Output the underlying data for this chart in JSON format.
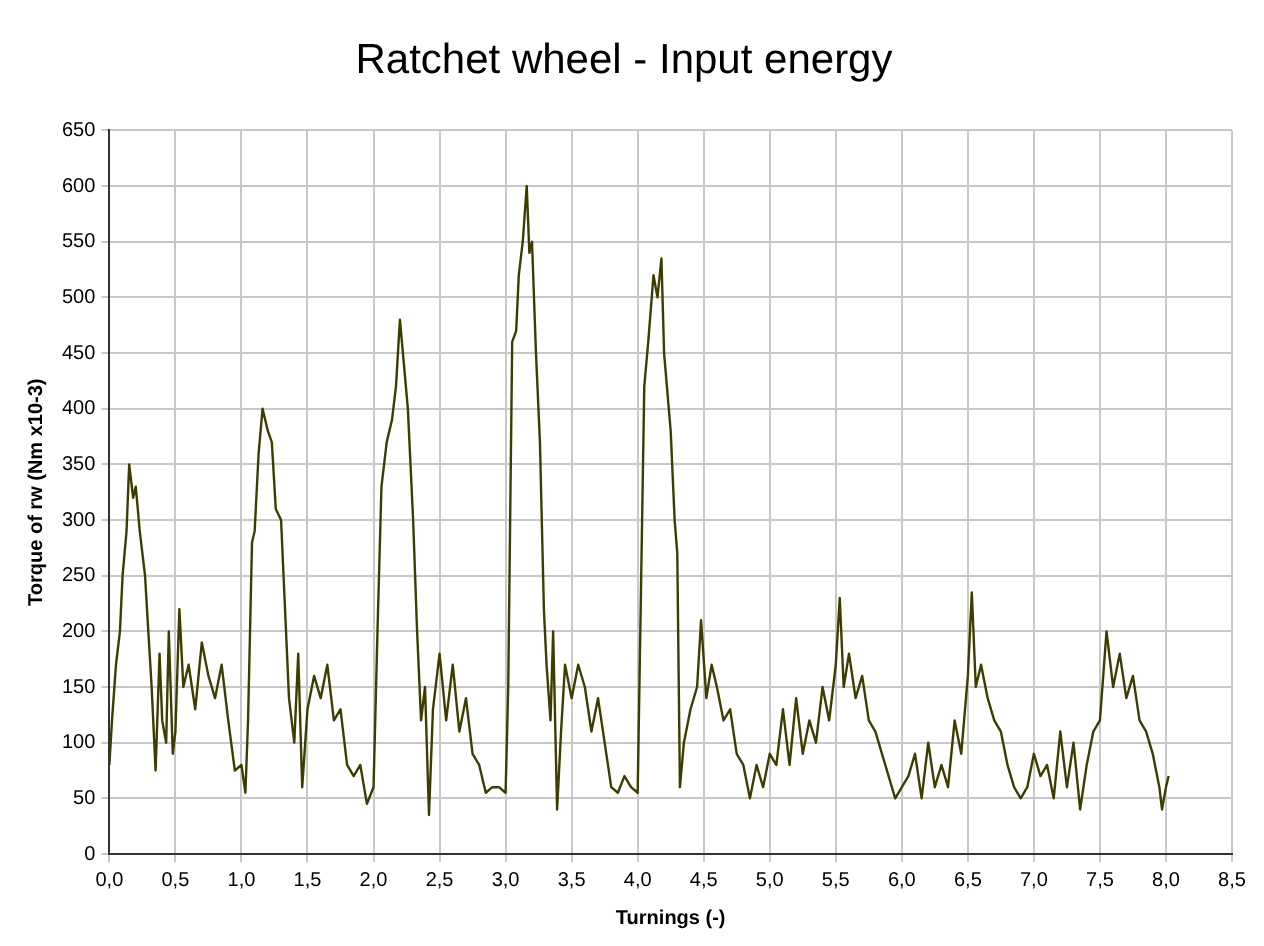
{
  "chart_data": {
    "type": "line",
    "title": "Ratchet wheel - Input energy",
    "xlabel": "Turnings (-)",
    "ylabel": "Torque of rw (Nm x10-3)",
    "series": [
      {
        "color": "#3d3d00",
        "x": [
          0.0,
          0.02,
          0.05,
          0.08,
          0.1,
          0.13,
          0.15,
          0.18,
          0.2,
          0.23,
          0.27,
          0.3,
          0.32,
          0.35,
          0.38,
          0.4,
          0.43,
          0.45,
          0.48,
          0.5,
          0.53,
          0.56,
          0.6,
          0.65,
          0.7,
          0.75,
          0.8,
          0.85,
          0.9,
          0.95,
          1.0,
          1.03,
          1.05,
          1.08,
          1.1,
          1.13,
          1.16,
          1.2,
          1.23,
          1.26,
          1.3,
          1.33,
          1.36,
          1.4,
          1.43,
          1.46,
          1.5,
          1.55,
          1.6,
          1.65,
          1.7,
          1.75,
          1.8,
          1.85,
          1.9,
          1.95,
          2.0,
          2.03,
          2.06,
          2.1,
          2.14,
          2.17,
          2.2,
          2.23,
          2.26,
          2.3,
          2.33,
          2.36,
          2.39,
          2.42,
          2.45,
          2.5,
          2.55,
          2.6,
          2.65,
          2.7,
          2.75,
          2.8,
          2.85,
          2.9,
          2.95,
          3.0,
          3.02,
          3.05,
          3.08,
          3.1,
          3.13,
          3.16,
          3.18,
          3.2,
          3.23,
          3.26,
          3.29,
          3.31,
          3.34,
          3.36,
          3.39,
          3.42,
          3.45,
          3.5,
          3.55,
          3.6,
          3.65,
          3.7,
          3.75,
          3.8,
          3.85,
          3.9,
          3.95,
          4.0,
          4.02,
          4.05,
          4.08,
          4.12,
          4.15,
          4.18,
          4.2,
          4.25,
          4.28,
          4.3,
          4.32,
          4.35,
          4.4,
          4.45,
          4.48,
          4.52,
          4.56,
          4.6,
          4.65,
          4.7,
          4.75,
          4.8,
          4.85,
          4.9,
          4.95,
          5.0,
          5.05,
          5.1,
          5.15,
          5.2,
          5.25,
          5.3,
          5.35,
          5.4,
          5.45,
          5.5,
          5.53,
          5.56,
          5.6,
          5.65,
          5.7,
          5.75,
          5.8,
          5.85,
          5.9,
          5.95,
          6.0,
          6.05,
          6.1,
          6.15,
          6.2,
          6.25,
          6.3,
          6.35,
          6.4,
          6.45,
          6.5,
          6.53,
          6.56,
          6.6,
          6.65,
          6.7,
          6.75,
          6.8,
          6.85,
          6.9,
          6.95,
          7.0,
          7.05,
          7.1,
          7.15,
          7.2,
          7.25,
          7.3,
          7.35,
          7.4,
          7.45,
          7.5,
          7.55,
          7.6,
          7.65,
          7.7,
          7.75,
          7.8,
          7.85,
          7.9,
          7.95,
          7.97,
          8.0,
          8.02
        ],
        "values": [
          80,
          120,
          170,
          200,
          250,
          290,
          350,
          320,
          330,
          290,
          250,
          190,
          150,
          75,
          180,
          120,
          100,
          200,
          90,
          110,
          220,
          150,
          170,
          130,
          190,
          160,
          140,
          170,
          120,
          75,
          80,
          55,
          120,
          280,
          290,
          360,
          400,
          380,
          370,
          310,
          300,
          220,
          140,
          100,
          180,
          60,
          130,
          160,
          140,
          170,
          120,
          130,
          80,
          70,
          80,
          45,
          60,
          200,
          330,
          370,
          390,
          420,
          480,
          440,
          400,
          300,
          200,
          120,
          150,
          35,
          130,
          180,
          120,
          170,
          110,
          140,
          90,
          80,
          55,
          60,
          60,
          55,
          150,
          460,
          470,
          520,
          550,
          600,
          540,
          550,
          450,
          370,
          220,
          170,
          120,
          200,
          40,
          110,
          170,
          140,
          170,
          150,
          110,
          140,
          100,
          60,
          55,
          70,
          60,
          55,
          200,
          420,
          460,
          520,
          500,
          535,
          450,
          380,
          300,
          270,
          60,
          100,
          130,
          150,
          210,
          140,
          170,
          150,
          120,
          130,
          90,
          80,
          50,
          80,
          60,
          90,
          80,
          130,
          80,
          140,
          90,
          120,
          100,
          150,
          120,
          170,
          230,
          150,
          180,
          140,
          160,
          120,
          110,
          90,
          70,
          50,
          60,
          70,
          90,
          50,
          100,
          60,
          80,
          60,
          120,
          90,
          160,
          235,
          150,
          170,
          140,
          120,
          110,
          80,
          60,
          50,
          60,
          90,
          70,
          80,
          50,
          110,
          60,
          100,
          40,
          80,
          110,
          120,
          200,
          150,
          180,
          140,
          160,
          120,
          110,
          90,
          60,
          40,
          60,
          70
        ]
      }
    ],
    "xlim": [
      0,
      8.5
    ],
    "xticks": [
      {
        "value": 0,
        "label": "0,0"
      },
      {
        "value": 0.5,
        "label": "0,5"
      },
      {
        "value": 1,
        "label": "1,0"
      },
      {
        "value": 1.5,
        "label": "1,5"
      },
      {
        "value": 2,
        "label": "2,0"
      },
      {
        "value": 2.5,
        "label": "2,5"
      },
      {
        "value": 3,
        "label": "3,0"
      },
      {
        "value": 3.5,
        "label": "3,5"
      },
      {
        "value": 4,
        "label": "4,0"
      },
      {
        "value": 4.5,
        "label": "4,5"
      },
      {
        "value": 5,
        "label": "5,0"
      },
      {
        "value": 5.5,
        "label": "5,5"
      },
      {
        "value": 6,
        "label": "6,0"
      },
      {
        "value": 6.5,
        "label": "6,5"
      },
      {
        "value": 7,
        "label": "7,0"
      },
      {
        "value": 7.5,
        "label": "7,5"
      },
      {
        "value": 8,
        "label": "8,0"
      },
      {
        "value": 8.5,
        "label": "8,5"
      }
    ],
    "ylim": [
      0,
      650
    ],
    "yticks": [
      0,
      50,
      100,
      150,
      200,
      250,
      300,
      350,
      400,
      450,
      500,
      550,
      600,
      650
    ],
    "grid": true,
    "legend": false,
    "marker": "none",
    "line_style": "solid"
  }
}
